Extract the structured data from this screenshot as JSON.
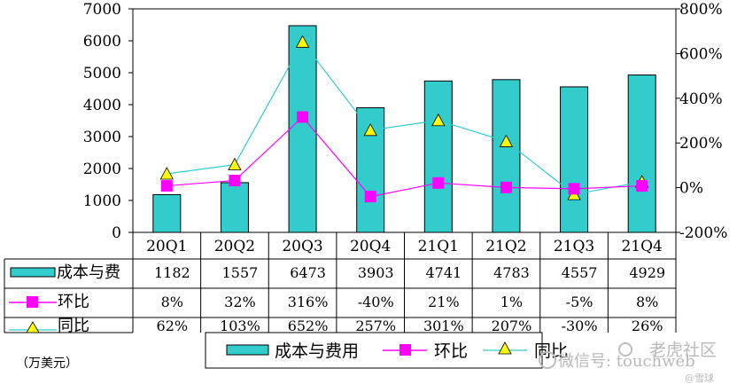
{
  "chart_data": {
    "type": "bar",
    "categories": [
      "20Q1",
      "20Q2",
      "20Q3",
      "20Q4",
      "21Q1",
      "21Q2",
      "21Q3",
      "21Q4"
    ],
    "series": [
      {
        "name": "成本与费用",
        "type": "bar",
        "axis": "left",
        "values": [
          1182,
          1557,
          6473,
          3903,
          4741,
          4783,
          4557,
          4929
        ],
        "color": "#33CCCC"
      },
      {
        "name": "环比",
        "type": "line",
        "axis": "right",
        "values": [
          8,
          32,
          316,
          -40,
          21,
          1,
          -5,
          8
        ],
        "color": "#FF00FF",
        "marker": "square"
      },
      {
        "name": "同比",
        "type": "line",
        "axis": "right",
        "values": [
          62,
          103,
          652,
          257,
          301,
          207,
          -30,
          26
        ],
        "color": "#33CCCC",
        "marker": "triangle",
        "marker_color": "#FFFF00"
      }
    ],
    "left_axis": {
      "ylim": [
        0,
        7000
      ],
      "ticks": [
        "0",
        "1000",
        "2000",
        "3000",
        "4000",
        "5000",
        "6000",
        "7000"
      ]
    },
    "right_axis": {
      "ylim": [
        -200,
        800
      ],
      "ticks": [
        "-200%",
        "0%",
        "200%",
        "400%",
        "600%",
        "800%"
      ]
    },
    "table": {
      "rows": [
        {
          "label": "成本与费",
          "cells": [
            "1182",
            "1557",
            "6473",
            "3903",
            "4741",
            "4783",
            "4557",
            "4929"
          ]
        },
        {
          "label": "环比",
          "cells": [
            "8%",
            "32%",
            "316%",
            "-40%",
            "21%",
            "1%",
            "-5%",
            "8%"
          ]
        },
        {
          "label": "同比",
          "cells": [
            "62%",
            "103%",
            "652%",
            "257%",
            "301%",
            "207%",
            "-30%",
            "26%"
          ]
        }
      ]
    },
    "legend": {
      "placement": "bottom",
      "items": [
        "成本与费用",
        "环比",
        "同比"
      ]
    },
    "unit_note": "（万美元）",
    "grid": false
  },
  "watermark": {
    "brand": "老虎社区",
    "wechat": "微信号: touchweb",
    "handle": "@雪球"
  }
}
